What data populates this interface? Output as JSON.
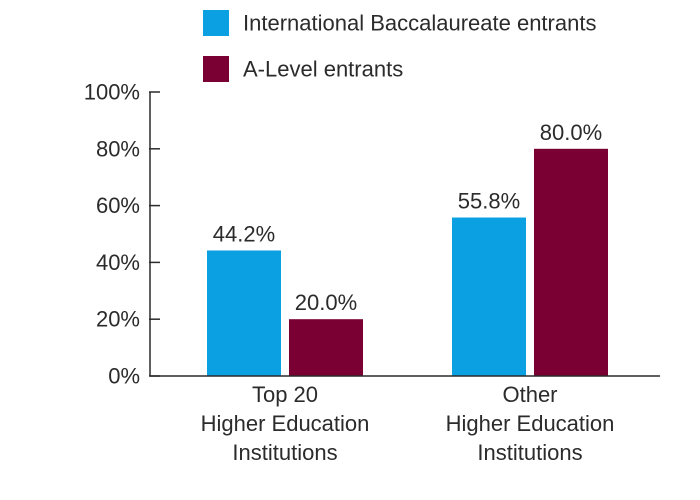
{
  "chart_data": {
    "type": "bar",
    "categories": [
      [
        "Top 20",
        "Higher Education",
        "Institutions"
      ],
      [
        "Other",
        "Higher Education",
        "Institutions"
      ]
    ],
    "series": [
      {
        "name": "International Baccalaureate entrants",
        "values": [
          44.2,
          55.8
        ],
        "color": "#0aa0e1"
      },
      {
        "name": "A-Level entrants",
        "values": [
          20.0,
          80.0
        ],
        "color": "#7a0033"
      }
    ],
    "ylim": [
      0,
      100
    ],
    "yticks": [
      0,
      20,
      40,
      60,
      80,
      100
    ],
    "ytick_labels": [
      "0%",
      "20%",
      "40%",
      "60%",
      "80%",
      "100%"
    ],
    "value_suffix": "%",
    "value_decimals": 1,
    "legend_position": "top",
    "grid": false
  }
}
